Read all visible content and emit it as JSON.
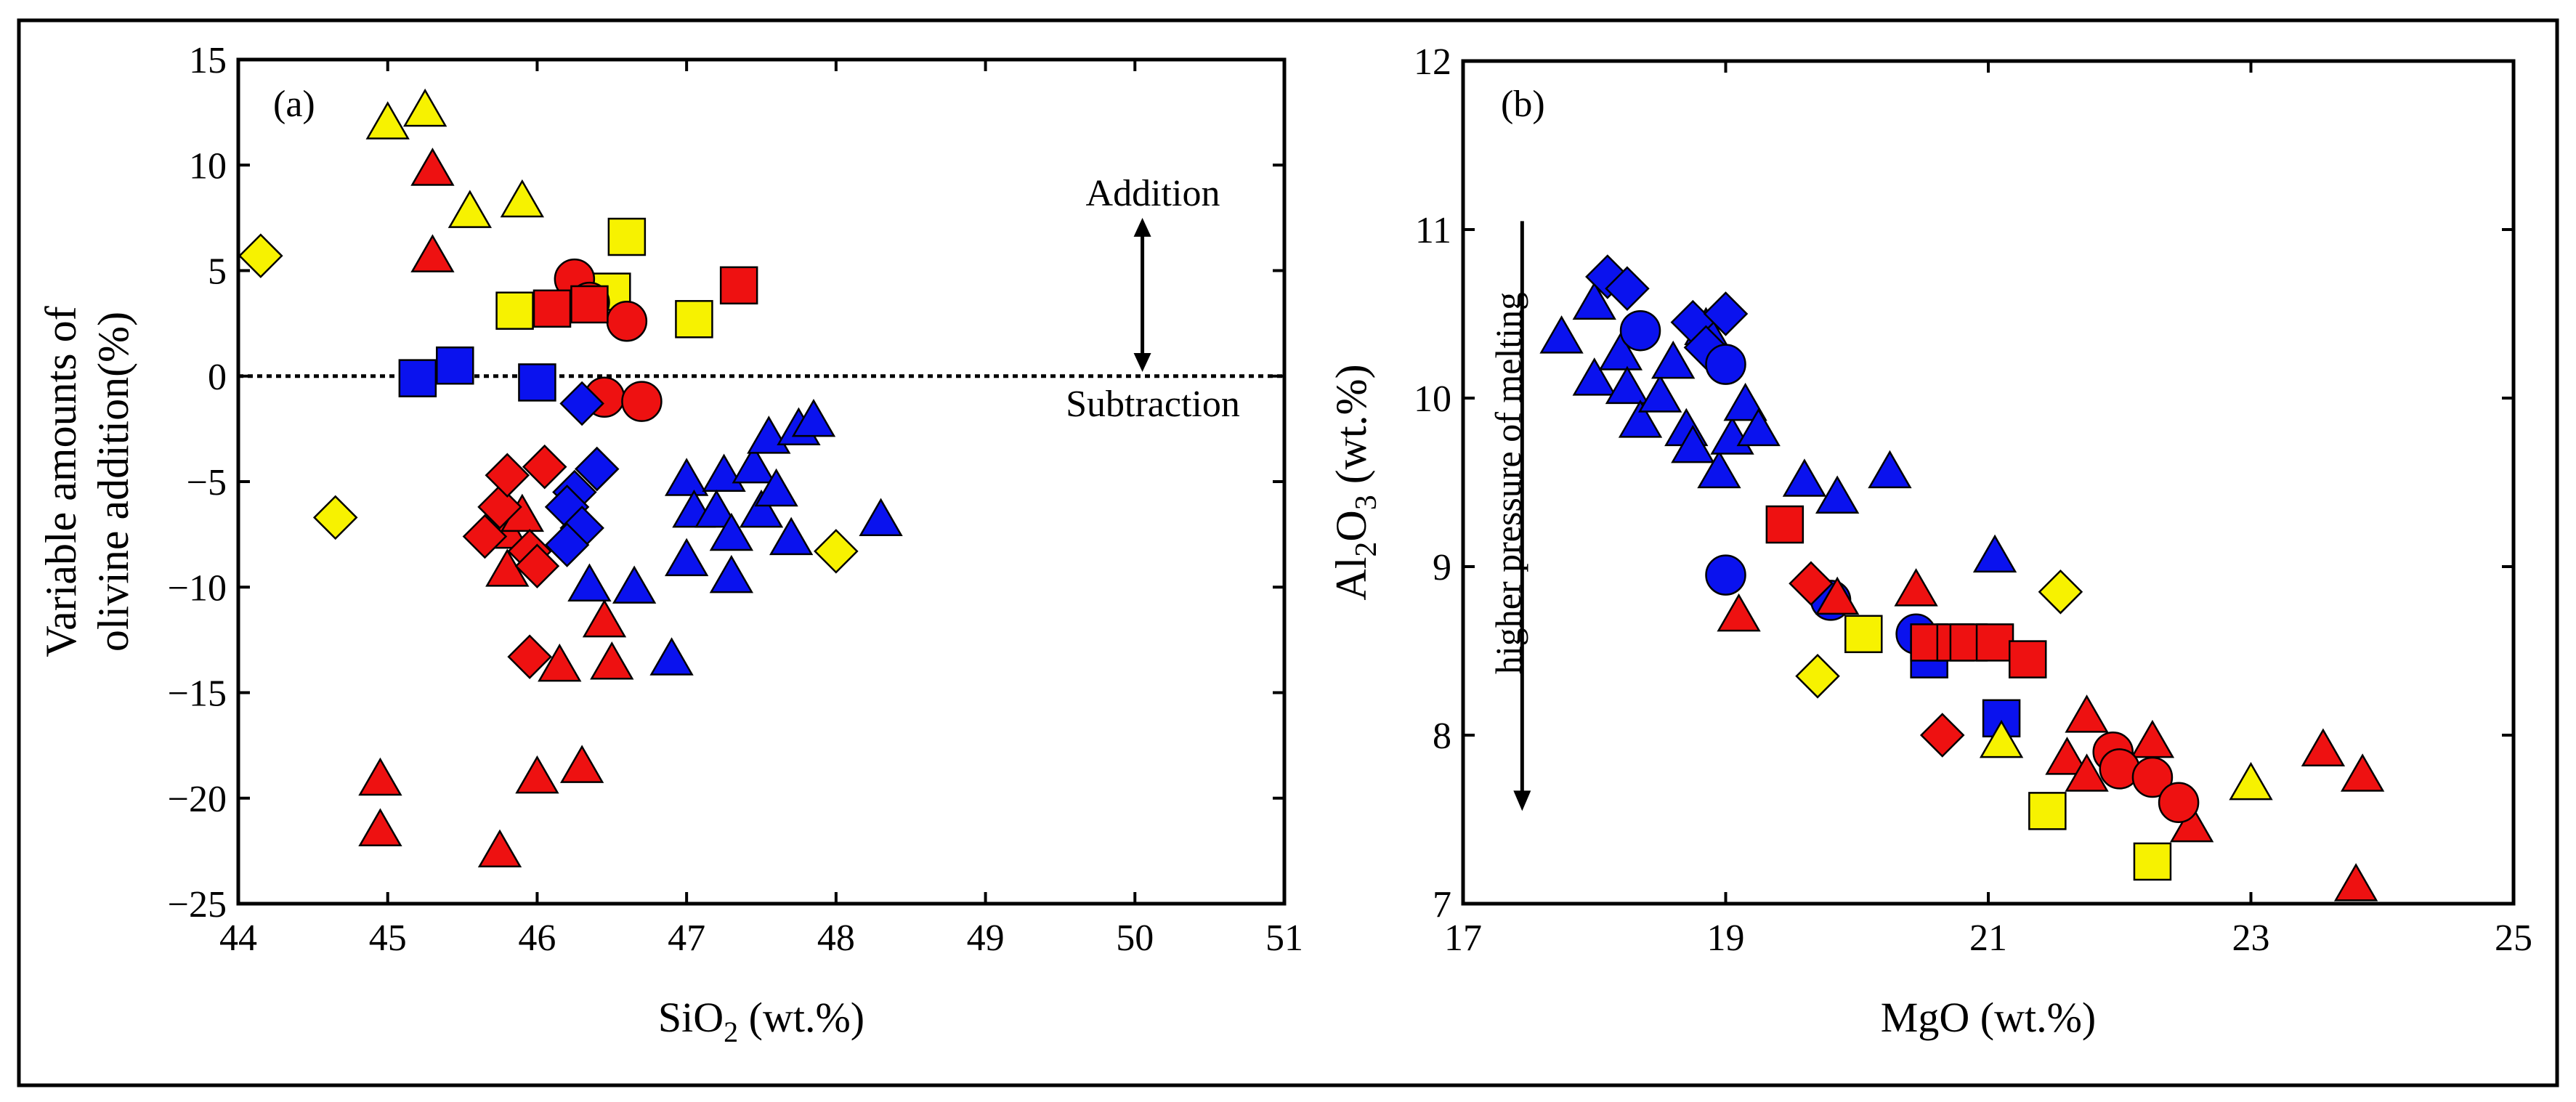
{
  "colors": {
    "red": "#ee1111",
    "blue": "#0a12ee",
    "yellow": "#f7f200",
    "stroke": "#000000"
  },
  "chart_data": [
    {
      "type": "scatter",
      "panel_label": "(a)",
      "xlabel": "SiO",
      "xlabel_sub": "2",
      "xlabel_suffix": " (wt.%)",
      "ylabel_line1": "Variable amounts of",
      "ylabel_line2": "olivine addition(%)",
      "xlim": [
        44,
        51
      ],
      "ylim": [
        -25,
        15
      ],
      "x_ticks": [
        44,
        45,
        46,
        47,
        48,
        49,
        50,
        51
      ],
      "y_ticks": [
        15,
        10,
        5,
        0,
        -5,
        -10,
        -15,
        -20,
        -25
      ],
      "y_tick_labels": [
        "15",
        "10",
        "5",
        "0",
        "−5",
        "−10",
        "−15",
        "−20",
        "−25"
      ],
      "reference_line_y": 0,
      "annotations": {
        "addition": "Addition",
        "subtraction": "Subtraction",
        "arrow_x": 50.05,
        "arrow_y": [
          7.5,
          0.2
        ]
      },
      "series": [
        {
          "color": "yellow",
          "marker": "triangle",
          "points": [
            [
              45.0,
              11.9
            ],
            [
              45.25,
              12.5
            ],
            [
              45.55,
              7.7
            ],
            [
              45.9,
              8.2
            ]
          ]
        },
        {
          "color": "yellow",
          "marker": "diamond",
          "points": [
            [
              44.15,
              5.7
            ],
            [
              44.65,
              -6.7
            ],
            [
              48.0,
              -8.3
            ]
          ]
        },
        {
          "color": "yellow",
          "marker": "square",
          "points": [
            [
              45.85,
              3.1
            ],
            [
              46.5,
              4.0
            ],
            [
              46.6,
              6.6
            ],
            [
              47.05,
              2.7
            ]
          ]
        },
        {
          "color": "red",
          "marker": "triangle",
          "points": [
            [
              45.3,
              9.7
            ],
            [
              45.3,
              5.6
            ],
            [
              44.95,
              -19.2
            ],
            [
              44.95,
              -21.6
            ],
            [
              45.75,
              -22.6
            ],
            [
              45.8,
              -9.3
            ],
            [
              45.8,
              -7.5
            ],
            [
              45.9,
              -6.7
            ],
            [
              46.0,
              -19.1
            ],
            [
              46.15,
              -13.8
            ],
            [
              46.3,
              -18.6
            ],
            [
              46.45,
              -11.7
            ],
            [
              46.5,
              -13.7
            ]
          ]
        },
        {
          "color": "red",
          "marker": "diamond",
          "points": [
            [
              45.65,
              -7.6
            ],
            [
              45.75,
              -6.2
            ],
            [
              45.8,
              -4.7
            ],
            [
              45.95,
              -8.3
            ],
            [
              46.0,
              -9.0
            ],
            [
              46.05,
              -4.3
            ],
            [
              45.95,
              -13.3
            ]
          ]
        },
        {
          "color": "red",
          "marker": "circle",
          "points": [
            [
              46.25,
              4.6
            ],
            [
              46.35,
              3.5
            ],
            [
              46.45,
              -1.0
            ],
            [
              46.6,
              2.6
            ],
            [
              46.7,
              -1.2
            ]
          ]
        },
        {
          "color": "red",
          "marker": "square",
          "points": [
            [
              46.1,
              3.2
            ],
            [
              46.35,
              3.4
            ],
            [
              47.35,
              4.3
            ]
          ]
        },
        {
          "color": "blue",
          "marker": "square",
          "points": [
            [
              45.2,
              -0.1
            ],
            [
              45.45,
              0.5
            ],
            [
              46.0,
              -0.3
            ]
          ]
        },
        {
          "color": "blue",
          "marker": "diamond",
          "points": [
            [
              46.3,
              -1.3
            ],
            [
              46.4,
              -4.4
            ],
            [
              46.25,
              -5.5
            ],
            [
              46.2,
              -6.2
            ],
            [
              46.3,
              -7.2
            ],
            [
              46.2,
              -8.0
            ]
          ]
        },
        {
          "color": "blue",
          "marker": "triangle",
          "points": [
            [
              46.35,
              -10.0
            ],
            [
              46.65,
              -10.1
            ],
            [
              46.9,
              -13.5
            ],
            [
              47.0,
              -5.0
            ],
            [
              47.05,
              -6.5
            ],
            [
              47.0,
              -8.8
            ],
            [
              47.25,
              -4.8
            ],
            [
              47.2,
              -6.5
            ],
            [
              47.3,
              -7.6
            ],
            [
              47.3,
              -9.6
            ],
            [
              47.45,
              -4.4
            ],
            [
              47.5,
              -6.5
            ],
            [
              47.55,
              -3.0
            ],
            [
              47.6,
              -5.5
            ],
            [
              47.7,
              -7.8
            ],
            [
              47.75,
              -2.6
            ],
            [
              47.85,
              -2.2
            ],
            [
              48.3,
              -6.9
            ]
          ]
        }
      ]
    },
    {
      "type": "scatter",
      "panel_label": "(b)",
      "xlabel": "MgO (wt.%)",
      "ylabel_pre": "Al",
      "ylabel_sub1": "2",
      "ylabel_mid": "O",
      "ylabel_sub2": "3",
      "ylabel_suffix": " (wt.%)",
      "xlim": [
        17,
        25
      ],
      "ylim": [
        7,
        12
      ],
      "x_ticks": [
        17,
        19,
        21,
        23,
        25
      ],
      "y_ticks": [
        7,
        8,
        9,
        10,
        11,
        12
      ],
      "annotation_text": "higher pressure of melting",
      "annotation_arrow": {
        "x": 17.45,
        "y": [
          11.05,
          7.55
        ]
      },
      "series": [
        {
          "color": "blue",
          "marker": "triangle",
          "points": [
            [
              17.75,
              10.35
            ],
            [
              18.0,
              10.55
            ],
            [
              18.0,
              10.1
            ],
            [
              18.2,
              10.25
            ],
            [
              18.25,
              10.05
            ],
            [
              18.35,
              9.85
            ],
            [
              18.5,
              10.0
            ],
            [
              18.6,
              10.2
            ],
            [
              18.7,
              9.8
            ],
            [
              18.75,
              9.7
            ],
            [
              18.85,
              10.4
            ],
            [
              18.95,
              9.55
            ],
            [
              19.05,
              9.75
            ],
            [
              19.15,
              9.95
            ],
            [
              19.25,
              9.8
            ],
            [
              19.6,
              9.5
            ],
            [
              19.85,
              9.4
            ],
            [
              20.25,
              9.55
            ],
            [
              21.05,
              9.05
            ]
          ]
        },
        {
          "color": "blue",
          "marker": "diamond",
          "points": [
            [
              18.1,
              10.72
            ],
            [
              18.25,
              10.65
            ],
            [
              18.75,
              10.45
            ],
            [
              18.85,
              10.3
            ],
            [
              19.0,
              10.5
            ]
          ]
        },
        {
          "color": "blue",
          "marker": "circle",
          "points": [
            [
              18.35,
              10.4
            ],
            [
              19.0,
              10.2
            ],
            [
              19.0,
              8.95
            ],
            [
              19.8,
              8.8
            ],
            [
              20.45,
              8.6
            ]
          ]
        },
        {
          "color": "blue",
          "marker": "square",
          "points": [
            [
              20.55,
              8.45
            ],
            [
              21.1,
              8.1
            ]
          ]
        },
        {
          "color": "red",
          "marker": "square",
          "points": [
            [
              19.45,
              9.25
            ],
            [
              20.55,
              8.55
            ],
            [
              20.75,
              8.55
            ],
            [
              20.85,
              8.55
            ],
            [
              21.05,
              8.55
            ],
            [
              21.3,
              8.45
            ]
          ]
        },
        {
          "color": "red",
          "marker": "diamond",
          "points": [
            [
              19.65,
              8.9
            ],
            [
              20.65,
              8.0
            ]
          ]
        },
        {
          "color": "red",
          "marker": "triangle",
          "points": [
            [
              19.1,
              8.7
            ],
            [
              19.85,
              8.8
            ],
            [
              20.45,
              8.85
            ],
            [
              21.6,
              7.85
            ],
            [
              21.75,
              8.1
            ],
            [
              21.75,
              7.75
            ],
            [
              22.25,
              7.95
            ],
            [
              22.55,
              7.45
            ],
            [
              23.55,
              7.9
            ],
            [
              23.85,
              7.75
            ],
            [
              23.8,
              7.1
            ]
          ]
        },
        {
          "color": "red",
          "marker": "circle",
          "points": [
            [
              21.95,
              7.9
            ],
            [
              22.0,
              7.8
            ],
            [
              22.25,
              7.75
            ],
            [
              22.45,
              7.6
            ]
          ]
        },
        {
          "color": "yellow",
          "marker": "square",
          "points": [
            [
              20.05,
              8.6
            ],
            [
              21.45,
              7.55
            ],
            [
              22.25,
              7.25
            ]
          ]
        },
        {
          "color": "yellow",
          "marker": "diamond",
          "points": [
            [
              19.7,
              8.35
            ],
            [
              21.55,
              8.85
            ]
          ]
        },
        {
          "color": "yellow",
          "marker": "triangle",
          "points": [
            [
              21.1,
              7.95
            ],
            [
              23.0,
              7.7
            ]
          ]
        }
      ]
    }
  ]
}
